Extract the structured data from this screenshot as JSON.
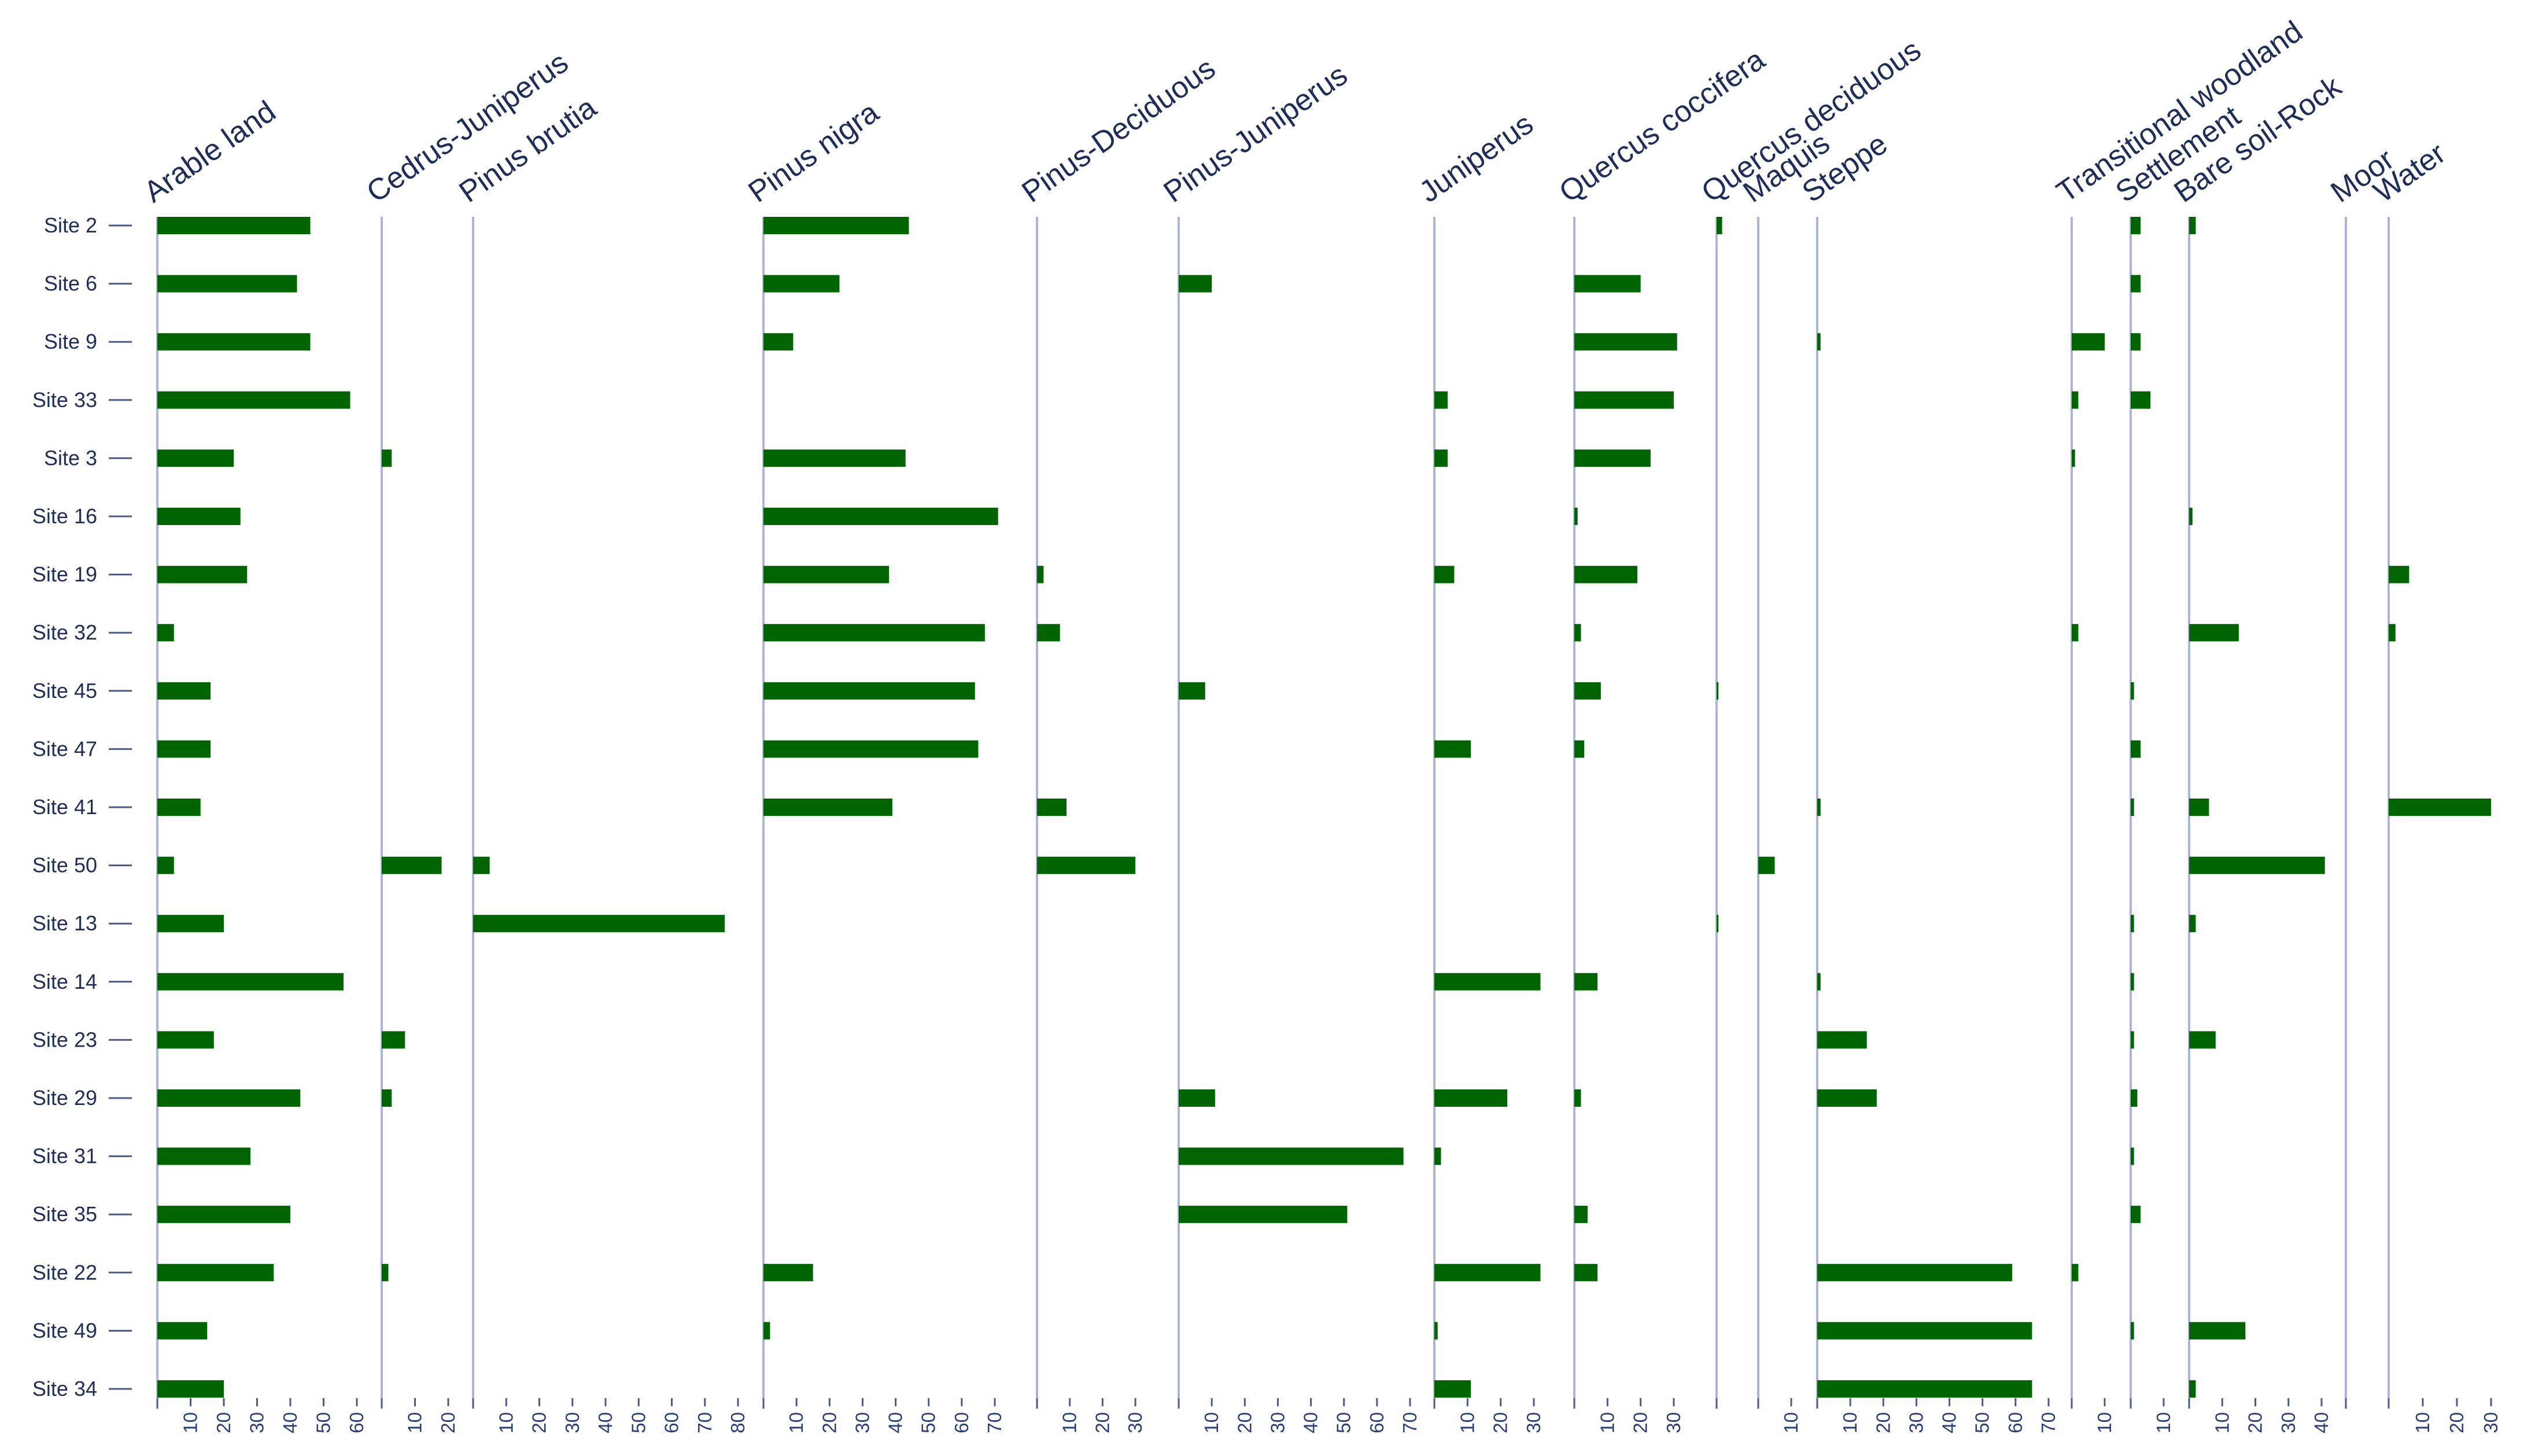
{
  "chart_data": {
    "type": "bar",
    "orientation": "horizontal",
    "title": "",
    "xlabel": "",
    "ylabel": "",
    "bar_color": "#006400",
    "categories": [
      "Site 2",
      "Site 6",
      "Site 9",
      "Site 33",
      "Site 3",
      "Site 16",
      "Site 19",
      "Site 32",
      "Site 45",
      "Site 47",
      "Site 41",
      "Site 50",
      "Site 13",
      "Site 14",
      "Site 23",
      "Site 29",
      "Site 31",
      "Site 35",
      "Site 22",
      "Site 49",
      "Site 34"
    ],
    "series": [
      {
        "name": "Arable land",
        "ticks": [
          "10",
          "20",
          "30",
          "40",
          "50",
          "60"
        ],
        "max": 60,
        "values": [
          46,
          42,
          46,
          58,
          23,
          25,
          27,
          5,
          16,
          16,
          13,
          5,
          20,
          56,
          17,
          43,
          28,
          40,
          35,
          15,
          20
        ]
      },
      {
        "name": "Cedrus-Juniperus",
        "ticks": [
          "10",
          "20"
        ],
        "max": 20,
        "values": [
          0,
          0,
          0,
          0,
          3,
          0,
          0,
          0,
          0,
          0,
          0,
          18,
          0,
          0,
          7,
          3,
          0,
          0,
          2,
          0,
          0
        ]
      },
      {
        "name": "Pinus brutia",
        "ticks": [
          "10",
          "20",
          "30",
          "40",
          "50",
          "60",
          "70",
          "80"
        ],
        "max": 80,
        "values": [
          0,
          0,
          0,
          0,
          0,
          0,
          0,
          0,
          0,
          0,
          0,
          5,
          76,
          0,
          0,
          0,
          0,
          0,
          0,
          0,
          0
        ]
      },
      {
        "name": "Pinus nigra",
        "ticks": [
          "10",
          "20",
          "30",
          "40",
          "50",
          "60",
          "70"
        ],
        "max": 70,
        "values": [
          44,
          23,
          9,
          0,
          43,
          71,
          38,
          67,
          64,
          65,
          39,
          0,
          0,
          0,
          0,
          0,
          0,
          0,
          15,
          2,
          0
        ]
      },
      {
        "name": "Pinus-Deciduous",
        "ticks": [
          "10",
          "20",
          "30"
        ],
        "max": 30,
        "values": [
          0,
          0,
          0,
          0,
          0,
          0,
          2,
          7,
          0,
          0,
          9,
          30,
          0,
          0,
          0,
          0,
          0,
          0,
          0,
          0,
          0
        ]
      },
      {
        "name": "Pinus-Juniperus",
        "ticks": [
          "10",
          "20",
          "30",
          "40",
          "50",
          "60",
          "70"
        ],
        "max": 70,
        "values": [
          0,
          10,
          0,
          0,
          0,
          0,
          0,
          0,
          8,
          0,
          0,
          0,
          0,
          0,
          0,
          11,
          68,
          51,
          0,
          0,
          0
        ]
      },
      {
        "name": "Juniperus",
        "ticks": [
          "10",
          "20",
          "30"
        ],
        "max": 30,
        "values": [
          0,
          0,
          0,
          4,
          4,
          0,
          6,
          0,
          0,
          11,
          0,
          0,
          0,
          32,
          0,
          22,
          2,
          0,
          32,
          1,
          11
        ]
      },
      {
        "name": "Quercus coccifera",
        "ticks": [
          "10",
          "20",
          "30"
        ],
        "max": 30,
        "values": [
          0,
          20,
          31,
          30,
          23,
          1,
          19,
          2,
          8,
          3,
          0,
          0,
          0,
          7,
          0,
          2,
          0,
          4,
          7,
          0,
          0
        ]
      },
      {
        "name": "Quercus deciduous",
        "ticks": [],
        "max": 10,
        "values": [
          3,
          0,
          0,
          0,
          0,
          0,
          0,
          0,
          1,
          0,
          0,
          0,
          1,
          0,
          0,
          0,
          0,
          0,
          0,
          0,
          0
        ]
      },
      {
        "name": "Maquis",
        "ticks": [
          "10"
        ],
        "max": 10,
        "values": [
          0,
          0,
          0,
          0,
          0,
          0,
          0,
          0,
          0,
          0,
          0,
          5,
          0,
          0,
          0,
          0,
          0,
          0,
          0,
          0,
          0
        ]
      },
      {
        "name": "Steppe",
        "ticks": [
          "10",
          "20",
          "30",
          "40",
          "50",
          "60",
          "70"
        ],
        "max": 70,
        "values": [
          0,
          0,
          1,
          0,
          0,
          0,
          0,
          0,
          0,
          0,
          1,
          0,
          0,
          1,
          15,
          18,
          0,
          0,
          59,
          65,
          65
        ]
      },
      {
        "name": "Transitional woodland",
        "ticks": [
          "10"
        ],
        "max": 10,
        "values": [
          0,
          0,
          10,
          2,
          1,
          0,
          0,
          2,
          0,
          0,
          0,
          0,
          0,
          0,
          0,
          0,
          0,
          0,
          2,
          0,
          0
        ]
      },
      {
        "name": "Settlement",
        "ticks": [
          "10"
        ],
        "max": 10,
        "values": [
          3,
          3,
          3,
          6,
          0,
          0,
          0,
          0,
          1,
          3,
          1,
          0,
          1,
          1,
          1,
          2,
          1,
          3,
          0,
          1,
          0
        ]
      },
      {
        "name": "Bare soil-Rock",
        "ticks": [
          "10",
          "20",
          "30",
          "40"
        ],
        "max": 40,
        "values": [
          2,
          0,
          0,
          0,
          0,
          1,
          0,
          15,
          0,
          0,
          6,
          41,
          2,
          0,
          8,
          0,
          0,
          0,
          0,
          17,
          2
        ]
      },
      {
        "name": "Moor",
        "ticks": [],
        "max": 10,
        "values": [
          0,
          0,
          0,
          0,
          0,
          0,
          0,
          0,
          0,
          0,
          0,
          0,
          0,
          0,
          0,
          0,
          0,
          0,
          0,
          0,
          0
        ]
      },
      {
        "name": "Water",
        "ticks": [
          "10",
          "20",
          "30"
        ],
        "max": 30,
        "values": [
          0,
          0,
          0,
          0,
          0,
          0,
          6,
          2,
          0,
          0,
          30,
          0,
          0,
          0,
          0,
          0,
          0,
          0,
          0,
          0,
          0
        ]
      }
    ]
  }
}
